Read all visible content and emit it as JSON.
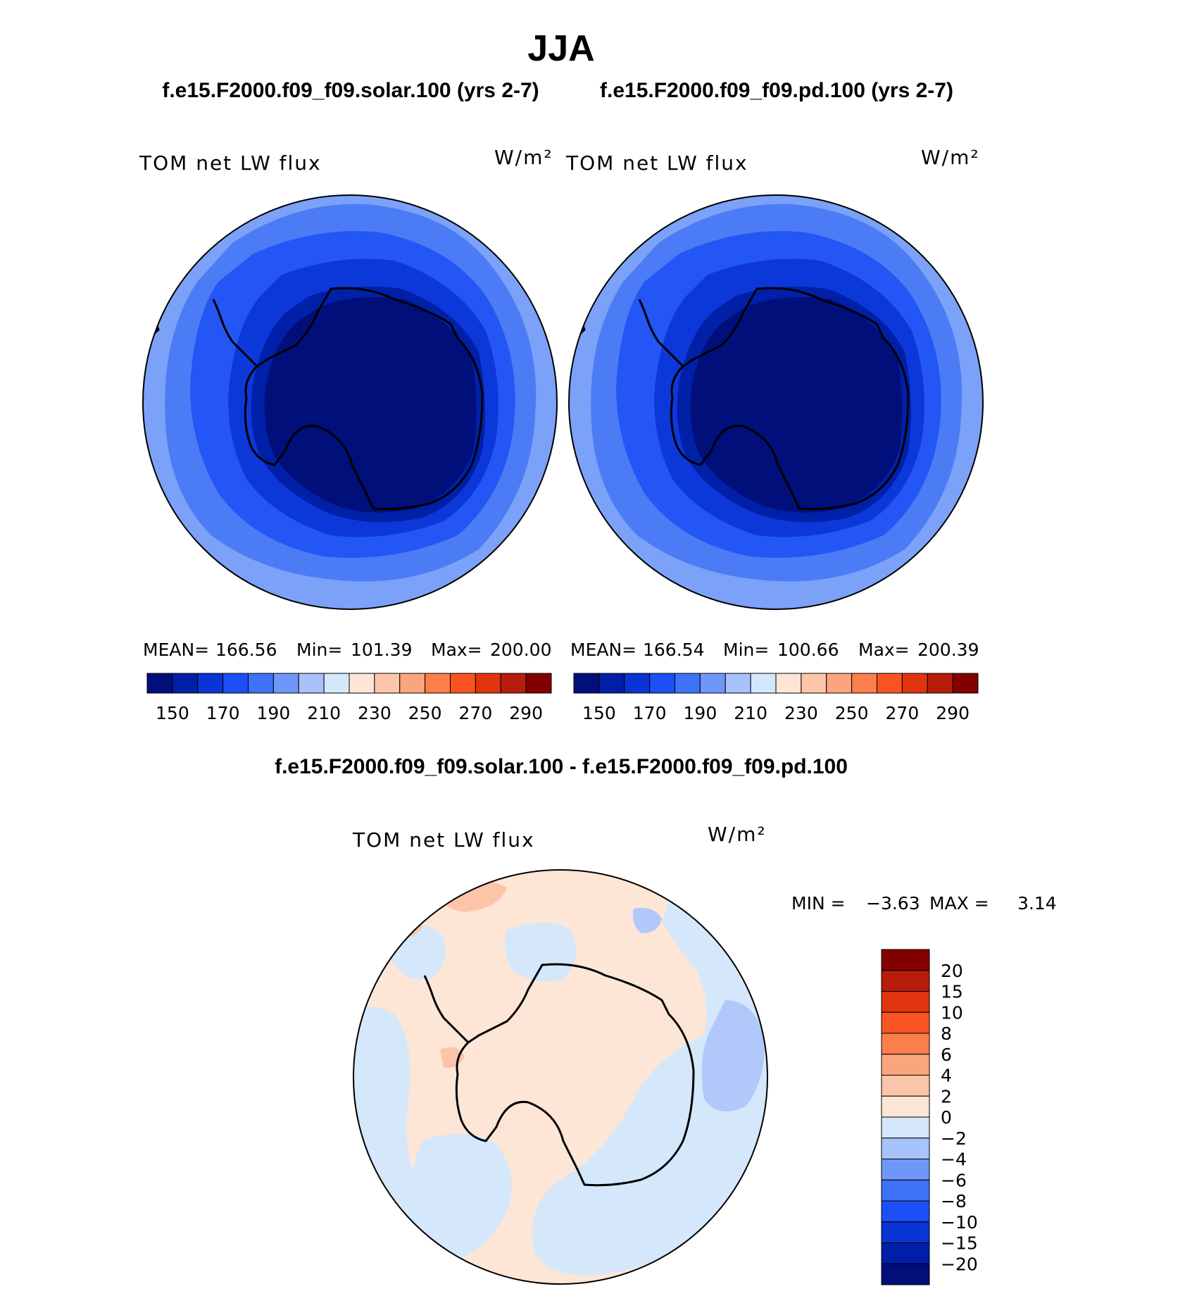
{
  "title": "JJA",
  "panels": [
    {
      "case_title": "f.e15.F2000.f09_f09.solar.100 (yrs 2-7)",
      "variable": "TOM net LW flux",
      "units": "W/m²",
      "stats": {
        "mean_label": "MEAN=",
        "mean": "166.56",
        "min_label": "Min=",
        "min": "101.39",
        "max_label": "Max=",
        "max": "200.00"
      }
    },
    {
      "case_title": "f.e15.F2000.f09_f09.pd.100 (yrs 2-7)",
      "variable": "TOM net LW flux",
      "units": "W/m²",
      "stats": {
        "mean_label": "MEAN=",
        "mean": "166.54",
        "min_label": "Min=",
        "min": "100.66",
        "max_label": "Max=",
        "max": "200.39"
      }
    }
  ],
  "colorbar_top": {
    "colors": [
      "#000f7a",
      "#001ea8",
      "#0a34d4",
      "#1c4ff5",
      "#3e72f7",
      "#6f97fa",
      "#a8c3fb",
      "#d5e7fb",
      "#fde6d6",
      "#fcc5aa",
      "#fba57c",
      "#fb7f4a",
      "#fa5322",
      "#e0340e",
      "#b81c0a",
      "#830000"
    ],
    "tick_labels": [
      "150",
      "170",
      "190",
      "210",
      "230",
      "250",
      "270",
      "290"
    ]
  },
  "difference": {
    "title": "f.e15.F2000.f09_f09.solar.100 - f.e15.F2000.f09_f09.pd.100",
    "variable": "TOM net LW flux",
    "units": "W/m²",
    "min_label": "MIN =",
    "min": "−3.63",
    "max_label": "MAX =",
    "max": "3.14"
  },
  "colorbar_diff": {
    "colors": [
      "#000f7a",
      "#001ea8",
      "#0a34d4",
      "#1c4ff5",
      "#3e72f7",
      "#6f97fa",
      "#a8c3fb",
      "#d5e7fb",
      "#fde6d6",
      "#fcc5aa",
      "#fba57c",
      "#fb7f4a",
      "#fa5322",
      "#e0340e",
      "#b81c0a",
      "#830000"
    ],
    "tick_labels": [
      "20",
      "15",
      "10",
      "8",
      "6",
      "4",
      "2",
      "0",
      "−2",
      "−4",
      "−6",
      "−8",
      "−10",
      "−15",
      "−20"
    ]
  },
  "map_colors": {
    "level_220": "#7ba2f8",
    "level_205": "#4b7cf6",
    "level_195": "#2456f5",
    "level_185": "#0d38d9",
    "level_170": "#0020a8",
    "level_150": "#000f7a",
    "diff_pos": "#fde6d6",
    "diff_neg": "#d5e7fb",
    "diff_neg2": "#b0c8fa",
    "diff_pos2": "#fcc5aa"
  }
}
